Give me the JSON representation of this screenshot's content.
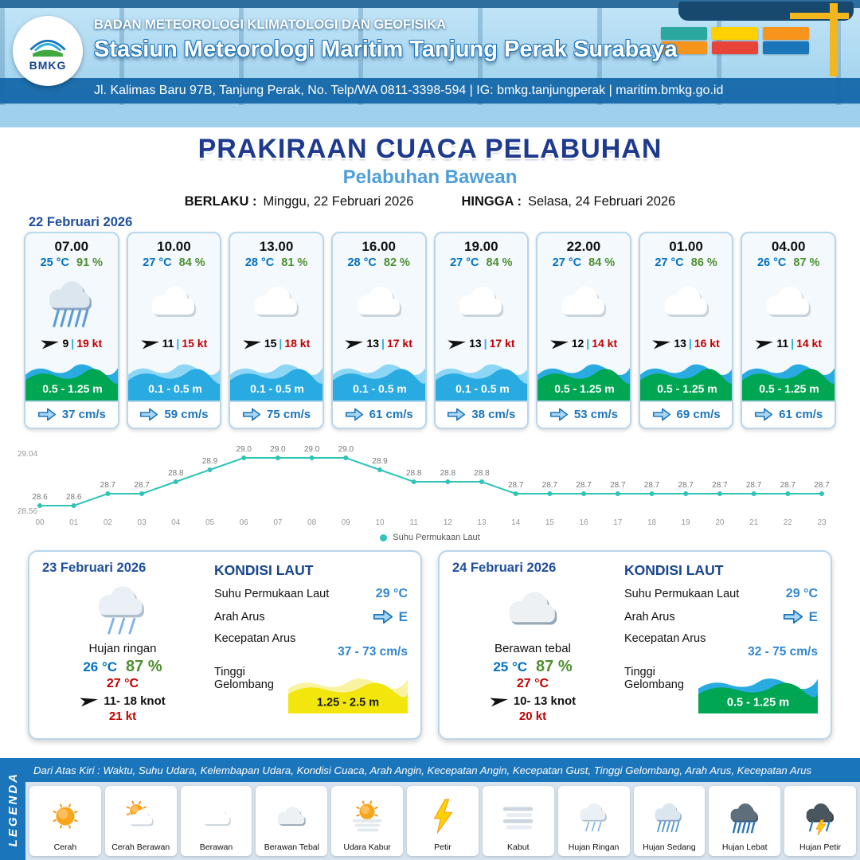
{
  "header": {
    "agency": "BADAN METEOROLOGI KLIMATOLOGI DAN GEOFISIKA",
    "station": "Stasiun Meteorologi Maritim Tanjung Perak Surabaya",
    "address": "Jl. Kalimas Baru 97B, Tanjung Perak, No. Telp/WA 0811-3398-594 | IG: bmkg.tanjungperak | maritim.bmkg.go.id",
    "logo_text": "BMKG"
  },
  "title": {
    "main": "PRAKIRAAN CUACA PELABUHAN",
    "port": "Pelabuhan Bawean",
    "berlaku_label": "BERLAKU :",
    "berlaku_value": "Minggu, 22 Februari 2026",
    "hingga_label": "HINGGA :",
    "hingga_value": "Selasa, 24 Februari 2026"
  },
  "hourly": {
    "date": "22 Februari 2026",
    "cards": [
      {
        "time": "07.00",
        "temp": "25 °C",
        "humidity": "91 %",
        "icon": "rain-mid",
        "wind_speed": "9",
        "gust": "19 kt",
        "wave": "0.5 - 1.25 m",
        "wave_color": "green",
        "current": "37 cm/s"
      },
      {
        "time": "10.00",
        "temp": "27 °C",
        "humidity": "84 %",
        "icon": "cloud",
        "wind_speed": "11",
        "gust": "15 kt",
        "wave": "0.1 - 0.5 m",
        "wave_color": "blue",
        "current": "59 cm/s"
      },
      {
        "time": "13.00",
        "temp": "28 °C",
        "humidity": "81 %",
        "icon": "cloud",
        "wind_speed": "15",
        "gust": "18 kt",
        "wave": "0.1 - 0.5 m",
        "wave_color": "blue",
        "current": "75 cm/s"
      },
      {
        "time": "16.00",
        "temp": "28 °C",
        "humidity": "82 %",
        "icon": "cloud",
        "wind_speed": "13",
        "gust": "17 kt",
        "wave": "0.1 - 0.5 m",
        "wave_color": "blue",
        "current": "61 cm/s"
      },
      {
        "time": "19.00",
        "temp": "27 °C",
        "humidity": "84 %",
        "icon": "cloud",
        "wind_speed": "13",
        "gust": "17 kt",
        "wave": "0.1 - 0.5 m",
        "wave_color": "blue",
        "current": "38 cm/s"
      },
      {
        "time": "22.00",
        "temp": "27 °C",
        "humidity": "84 %",
        "icon": "cloud",
        "wind_speed": "12",
        "gust": "14 kt",
        "wave": "0.5 - 1.25 m",
        "wave_color": "green",
        "current": "53 cm/s"
      },
      {
        "time": "01.00",
        "temp": "27 °C",
        "humidity": "86 %",
        "icon": "cloud",
        "wind_speed": "13",
        "gust": "16 kt",
        "wave": "0.5 - 1.25 m",
        "wave_color": "green",
        "current": "69 cm/s"
      },
      {
        "time": "04.00",
        "temp": "26 °C",
        "humidity": "87 %",
        "icon": "cloud",
        "wind_speed": "11",
        "gust": "14 kt",
        "wave": "0.5 - 1.25 m",
        "wave_color": "green",
        "current": "61 cm/s"
      }
    ]
  },
  "chart_data": {
    "type": "line",
    "series_name": "Suhu Permukaan Laut",
    "x": [
      "00",
      "01",
      "02",
      "03",
      "04",
      "05",
      "06",
      "07",
      "08",
      "09",
      "10",
      "11",
      "12",
      "13",
      "14",
      "15",
      "16",
      "17",
      "18",
      "19",
      "20",
      "21",
      "22",
      "23"
    ],
    "values": [
      28.6,
      28.6,
      28.7,
      28.7,
      28.8,
      28.9,
      29.0,
      29.0,
      29.0,
      29.0,
      28.9,
      28.8,
      28.8,
      28.8,
      28.7,
      28.7,
      28.7,
      28.7,
      28.7,
      28.7,
      28.7,
      28.7,
      28.7,
      28.7
    ],
    "ylim": [
      28.56,
      29.04
    ],
    "line_color": "#2ec4b6",
    "grid": false,
    "legend_position": "bottom"
  },
  "daily": [
    {
      "date": "23 Februari 2026",
      "icon": "rain-light",
      "condition": "Hujan ringan",
      "temp_min": "26 °C",
      "humidity": "87 %",
      "temp_max": "27 °C",
      "wind_range": "11- 18 knot",
      "gust": "21 kt",
      "sea": {
        "title": "KONDISI LAUT",
        "sst_label": "Suhu Permukaan Laut",
        "sst": "29 °C",
        "current_dir_label": "Arah Arus",
        "current_dir": "E",
        "current_speed_label": "Kecepatan Arus",
        "current_speed": "37 - 73 cm/s",
        "wave_label": "Tinggi Gelombang",
        "wave": "1.25 - 2.5 m",
        "wave_color": "yellow"
      }
    },
    {
      "date": "24 Februari 2026",
      "icon": "cloud-dark",
      "condition": "Berawan tebal",
      "temp_min": "25 °C",
      "humidity": "87 %",
      "temp_max": "27 °C",
      "wind_range": "10- 13 knot",
      "gust": "20 kt",
      "sea": {
        "title": "KONDISI LAUT",
        "sst_label": "Suhu Permukaan Laut",
        "sst": "29 °C",
        "current_dir_label": "Arah Arus",
        "current_dir": "E",
        "current_speed_label": "Kecepatan Arus",
        "current_speed": "32 - 75 cm/s",
        "wave_label": "Tinggi Gelombang",
        "wave": "0.5 - 1.25 m",
        "wave_color": "green"
      }
    }
  ],
  "legend": {
    "side_label": "LEGENDA",
    "description": "Dari Atas Kiri : Waktu, Suhu Udara, Kelembapan Udara, Kondisi Cuaca, Arah Angin, Kecepatan Angin, Kecepatan Gust, Tinggi Gelombang, Arah Arus, Kecepatan Arus",
    "items": [
      {
        "icon": "sun",
        "label": "Cerah"
      },
      {
        "icon": "sun-cloud",
        "label": "Cerah Berawan"
      },
      {
        "icon": "cloud",
        "label": "Berawan"
      },
      {
        "icon": "cloud-dark",
        "label": "Berawan Tebal"
      },
      {
        "icon": "hazy",
        "label": "Udara Kabur"
      },
      {
        "icon": "lightning",
        "label": "Petir"
      },
      {
        "icon": "fog",
        "label": "Kabut"
      },
      {
        "icon": "rain-light",
        "label": "Hujan Ringan"
      },
      {
        "icon": "rain-mid",
        "label": "Hujan Sedang"
      },
      {
        "icon": "rain-heavy",
        "label": "Hujan Lebat"
      },
      {
        "icon": "storm",
        "label": "Hujan Petir"
      }
    ]
  },
  "colors": {
    "wave_green": "#00A651",
    "wave_blue": "#29ABE2",
    "wave_yellow": "#F2E60D",
    "temp_blue": "#0070C0",
    "humidity_green": "#4E8F2F",
    "gust_red": "#C00000",
    "primary_blue": "#1B75BB",
    "title_navy": "#1E3A8F",
    "subtitle_blue": "#4D9FDC",
    "chart_line": "#2EC4B6"
  }
}
